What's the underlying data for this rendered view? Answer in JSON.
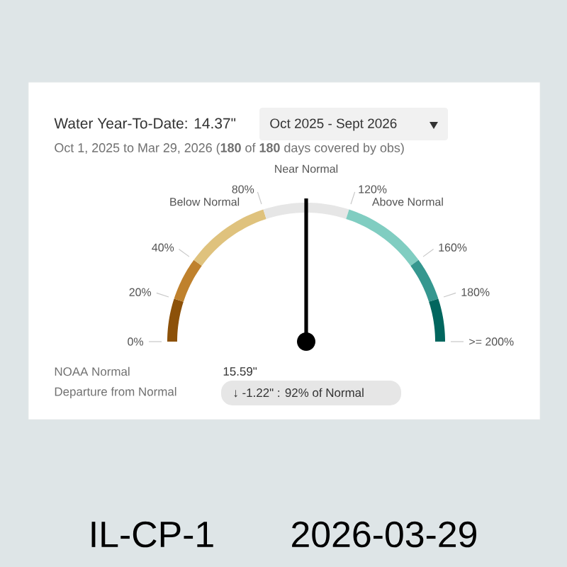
{
  "chart_data": {
    "type": "donut",
    "title": "Water Year-To-Date: 14.37\"",
    "subtitle": "Oct 1, 2025 to Mar 29, 2026  (**180** of **180** days covered by obs)",
    "categories": [
      null,
      null,
      "Below Normal",
      "Near Normal",
      "Above Normal",
      null,
      null
    ],
    "values": [
      10,
      10,
      20,
      20,
      20,
      10,
      10
    ],
    "colors": [
      "#8c5109",
      "#bf812d",
      "#dfc27d",
      "#e6e6e6",
      "#80cdc1",
      "#35978f",
      "#01665e"
    ],
    "needle": "Near Normal",
    "annotations": [
      "Oct 2025 - Sept 2026",
      "0%",
      "20%",
      "40%",
      "80%",
      "120%",
      "160%",
      "180%",
      ">= 200%",
      "NOAA Normal",
      "15.59\"",
      "Departure from Normal",
      "↓ -1.22\" : 92% of Normal",
      "IL-CP-1",
      "2026-03-29"
    ]
  }
}
